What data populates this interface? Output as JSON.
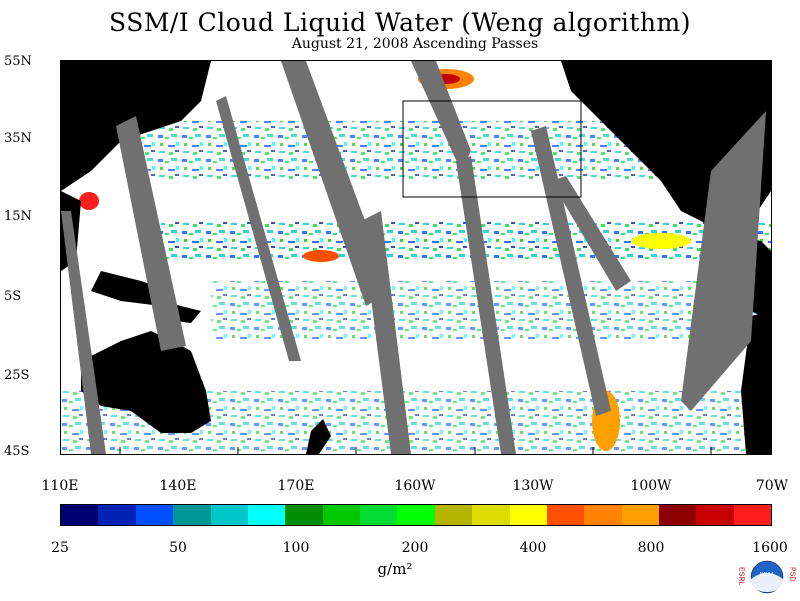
{
  "header": {
    "title": "SSM/I Cloud Liquid Water (Weng algorithm)",
    "subtitle": "August 21, 2008  Ascending Passes"
  },
  "map": {
    "lat_labels": [
      "55N",
      "35N",
      "15N",
      "5S",
      "25S",
      "45S"
    ],
    "lon_labels": [
      "110E",
      "140E",
      "170E",
      "160W",
      "130W",
      "100W",
      "70W"
    ]
  },
  "colorbar": {
    "colors": [
      "#00006e",
      "#0023b4",
      "#0050ff",
      "#009696",
      "#00c8c8",
      "#00ffff",
      "#008c00",
      "#00c800",
      "#00dc32",
      "#00ff00",
      "#b4b400",
      "#dcdc00",
      "#ffff00",
      "#ff5000",
      "#ff8200",
      "#ffa000",
      "#8c0000",
      "#c80000",
      "#ff1e1e"
    ],
    "tick_labels": [
      "25",
      "50",
      "100",
      "200",
      "400",
      "800",
      "1600"
    ],
    "units": "g/m²"
  },
  "logo": {
    "left_text": "ESRL",
    "right_text": "PSD",
    "center_text": "NOAA"
  }
}
